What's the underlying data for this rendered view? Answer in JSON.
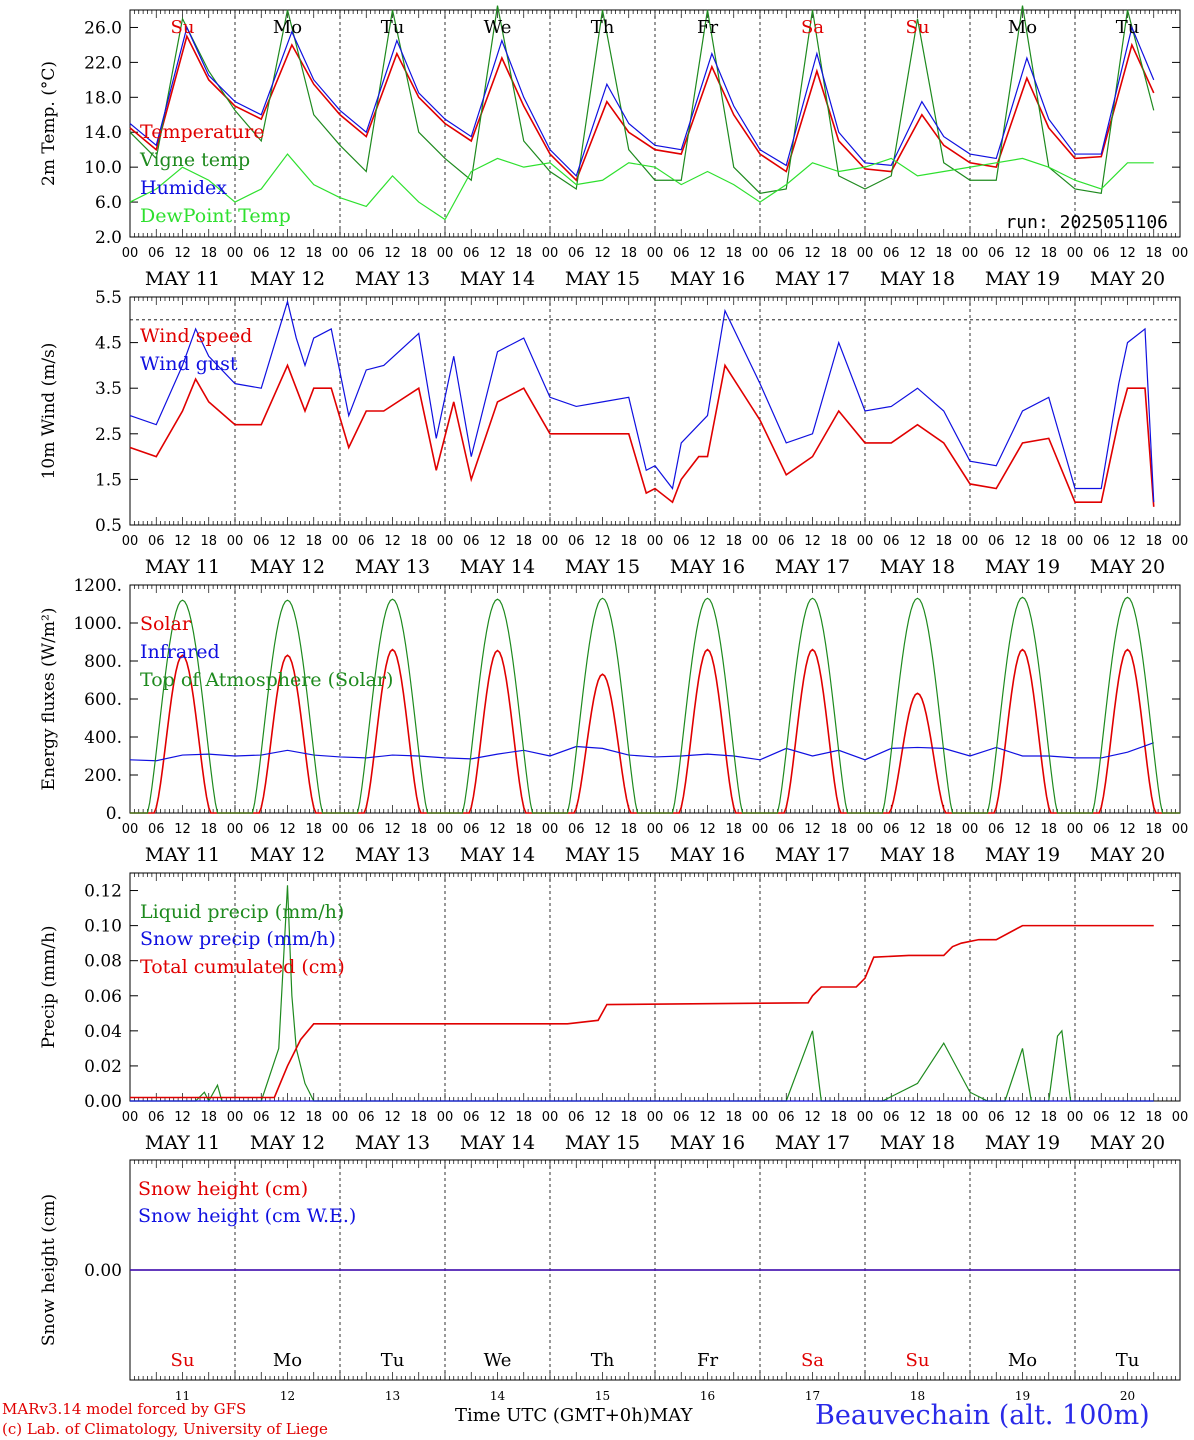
{
  "colors": {
    "red": "#e00000",
    "green": "#1e8a1e",
    "blue": "#1010e0",
    "lightgreen": "#2ee02e",
    "black": "#000000",
    "station_blue": "#2a2ae8"
  },
  "days": {
    "labels": [
      "MAY 11",
      "MAY 12",
      "MAY 13",
      "MAY 14",
      "MAY 15",
      "MAY 16",
      "MAY 17",
      "MAY 18",
      "MAY 19",
      "MAY 20"
    ],
    "weekdays": [
      "Su",
      "Mo",
      "Tu",
      "We",
      "Th",
      "Fr",
      "Sa",
      "Su",
      "Mo",
      "Tu"
    ],
    "weekday_colors": [
      "#e00000",
      "#000000",
      "#000000",
      "#000000",
      "#000000",
      "#000000",
      "#e00000",
      "#e00000",
      "#000000",
      "#000000"
    ],
    "numbers": [
      "11",
      "12",
      "13",
      "14",
      "15",
      "16",
      "17",
      "18",
      "19",
      "20"
    ],
    "hour_ticks": [
      "00",
      "06",
      "12",
      "18"
    ],
    "final_tick": "00"
  },
  "footer": {
    "model_line": "MARv3.14 model forced by GFS",
    "lab_line": "(c) Lab. of Climatology, University of Liege",
    "axis_title": "Time UTC (GMT+0h)",
    "month": "MAY",
    "station": "Beauvechain (alt. 100m)"
  },
  "chart_data": [
    {
      "type": "line",
      "ylabel": "2m Temp. (°C)",
      "ylim": [
        2.0,
        28.0
      ],
      "yticks": [
        "2.0",
        "6.0",
        "10.0",
        "14.0",
        "18.0",
        "22.0",
        "26.0"
      ],
      "ytick_values": [
        2,
        6,
        10,
        14,
        18,
        22,
        26
      ],
      "annotation": "run: 2025051106",
      "x_unit": "hours since MAY 11 00 UTC",
      "series": [
        {
          "name": "Temperature",
          "color": "#e00000",
          "x": [
            0,
            6,
            13,
            18,
            24,
            30,
            37,
            42,
            48,
            54,
            61,
            66,
            72,
            78,
            85,
            90,
            96,
            102,
            109,
            114,
            120,
            126,
            133,
            138,
            144,
            150,
            157,
            162,
            168,
            174,
            181,
            186,
            192,
            198,
            205,
            210,
            216,
            222,
            229,
            234
          ],
          "y": [
            14.5,
            12.0,
            25.0,
            20.0,
            17.0,
            15.5,
            24.0,
            19.5,
            16.0,
            13.5,
            23.0,
            18.0,
            15.0,
            13.0,
            22.5,
            17.0,
            11.5,
            8.5,
            17.5,
            14.0,
            12.0,
            11.5,
            21.5,
            16.0,
            11.5,
            9.5,
            21.0,
            13.0,
            9.8,
            9.5,
            16.0,
            12.5,
            10.5,
            10.0,
            20.2,
            14.5,
            11.0,
            11.2,
            24.0,
            18.5
          ]
        },
        {
          "name": "Vigne temp",
          "color": "#1e8a1e",
          "x": [
            0,
            6,
            12,
            18,
            24,
            30,
            36,
            42,
            48,
            54,
            60,
            66,
            72,
            78,
            84,
            90,
            96,
            102,
            108,
            114,
            120,
            126,
            132,
            138,
            144,
            150,
            156,
            162,
            168,
            174,
            180,
            186,
            192,
            198,
            204,
            210,
            216,
            222,
            228,
            234
          ],
          "y": [
            14.0,
            11.0,
            27.0,
            21.0,
            16.5,
            13.0,
            28.0,
            16.0,
            12.5,
            9.5,
            28.0,
            14.0,
            11.0,
            8.5,
            28.5,
            13.0,
            9.5,
            7.5,
            28.0,
            12.0,
            8.5,
            8.5,
            28.0,
            10.0,
            7.0,
            7.5,
            28.0,
            9.0,
            7.5,
            9.0,
            27.0,
            10.5,
            8.5,
            8.5,
            28.5,
            10.0,
            7.5,
            7.0,
            28.0,
            16.5
          ]
        },
        {
          "name": "Humidex",
          "color": "#1010e0",
          "x": [
            0,
            6,
            13,
            18,
            24,
            30,
            37,
            42,
            48,
            54,
            61,
            66,
            72,
            78,
            85,
            90,
            96,
            102,
            109,
            114,
            120,
            126,
            133,
            138,
            144,
            150,
            157,
            162,
            168,
            174,
            181,
            186,
            192,
            198,
            205,
            210,
            216,
            222,
            229,
            234
          ],
          "y": [
            15.0,
            12.5,
            26.0,
            20.5,
            17.5,
            16.0,
            25.5,
            20.0,
            16.5,
            14.0,
            24.5,
            18.5,
            15.5,
            13.5,
            24.5,
            18.0,
            12.0,
            9.0,
            19.5,
            15.0,
            12.5,
            12.0,
            23.0,
            17.0,
            12.0,
            10.2,
            23.0,
            14.0,
            10.5,
            10.2,
            17.5,
            13.5,
            11.5,
            11.0,
            22.5,
            15.5,
            11.5,
            11.5,
            26.0,
            20.0
          ]
        },
        {
          "name": "DewPoint Temp",
          "color": "#2ee02e",
          "x": [
            0,
            6,
            12,
            18,
            24,
            30,
            36,
            42,
            48,
            54,
            60,
            66,
            72,
            78,
            84,
            90,
            96,
            102,
            108,
            114,
            120,
            126,
            132,
            138,
            144,
            150,
            156,
            162,
            168,
            174,
            180,
            186,
            192,
            198,
            204,
            210,
            216,
            222,
            228,
            234
          ],
          "y": [
            6.0,
            7.5,
            10.0,
            8.5,
            6.0,
            7.5,
            11.5,
            8.0,
            6.5,
            5.5,
            9.0,
            6.0,
            4.0,
            9.5,
            11.0,
            10.0,
            10.5,
            8.0,
            8.5,
            10.5,
            10.0,
            8.0,
            9.5,
            8.0,
            6.0,
            8.0,
            10.5,
            9.5,
            10.0,
            11.0,
            9.0,
            9.5,
            10.0,
            10.5,
            11.0,
            10.0,
            8.5,
            7.5,
            10.5,
            10.5
          ]
        }
      ]
    },
    {
      "type": "line",
      "ylabel": "10m Wind (m/s)",
      "ylim": [
        0.5,
        5.5
      ],
      "yticks": [
        "0.5",
        "1.5",
        "2.5",
        "3.5",
        "4.5",
        "5.5"
      ],
      "ytick_values": [
        0.5,
        1.5,
        2.5,
        3.5,
        4.5,
        5.5
      ],
      "reference_line": 5.0,
      "x_unit": "hours since MAY 11 00 UTC",
      "series": [
        {
          "name": "Wind speed",
          "color": "#e00000",
          "x": [
            0,
            6,
            12,
            15,
            18,
            24,
            30,
            36,
            38,
            40,
            42,
            46,
            50,
            54,
            58,
            66,
            70,
            74,
            78,
            84,
            90,
            96,
            102,
            108,
            114,
            118,
            120,
            124,
            126,
            130,
            132,
            136,
            144,
            150,
            156,
            162,
            168,
            174,
            180,
            186,
            192,
            198,
            204,
            210,
            216,
            222,
            226,
            228,
            232,
            234
          ],
          "y": [
            2.2,
            2.0,
            3.0,
            3.7,
            3.2,
            2.7,
            2.7,
            4.0,
            3.5,
            3.0,
            3.5,
            3.5,
            2.2,
            3.0,
            3.0,
            3.5,
            1.7,
            3.2,
            1.5,
            3.2,
            3.5,
            2.5,
            2.5,
            2.5,
            2.5,
            1.2,
            1.3,
            1.0,
            1.5,
            2.0,
            2.0,
            4.0,
            2.8,
            1.6,
            2.0,
            3.0,
            2.3,
            2.3,
            2.7,
            2.3,
            1.4,
            1.3,
            2.3,
            2.4,
            1.0,
            1.0,
            2.8,
            3.5,
            3.5,
            0.9
          ]
        },
        {
          "name": "Wind gust",
          "color": "#1010e0",
          "x": [
            0,
            6,
            12,
            15,
            18,
            24,
            30,
            36,
            38,
            40,
            42,
            46,
            50,
            54,
            58,
            66,
            70,
            74,
            78,
            84,
            90,
            96,
            102,
            108,
            114,
            118,
            120,
            124,
            126,
            130,
            132,
            136,
            144,
            150,
            156,
            162,
            168,
            174,
            180,
            186,
            192,
            198,
            204,
            210,
            216,
            222,
            226,
            228,
            232,
            234
          ],
          "y": [
            2.9,
            2.7,
            4.0,
            4.8,
            4.2,
            3.6,
            3.5,
            5.4,
            4.6,
            4.0,
            4.6,
            4.8,
            2.9,
            3.9,
            4.0,
            4.7,
            2.4,
            4.2,
            2.0,
            4.3,
            4.6,
            3.3,
            3.1,
            3.2,
            3.3,
            1.7,
            1.8,
            1.3,
            2.3,
            2.7,
            2.9,
            5.2,
            3.6,
            2.3,
            2.5,
            4.5,
            3.0,
            3.1,
            3.5,
            3.0,
            1.9,
            1.8,
            3.0,
            3.3,
            1.3,
            1.3,
            3.6,
            4.5,
            4.8,
            1.0
          ]
        }
      ]
    },
    {
      "type": "line",
      "ylabel": "Energy fluxes (W/m²)",
      "ylim": [
        0,
        1200
      ],
      "yticks": [
        "0.",
        "200.",
        "400.",
        "600.",
        "800.",
        "1000.",
        "1200."
      ],
      "ytick_values": [
        0,
        200,
        400,
        600,
        800,
        1000,
        1200
      ],
      "x_unit": "hours since MAY 11 00 UTC",
      "daily_peaks": {
        "Solar": [
          830,
          830,
          860,
          855,
          730,
          860,
          860,
          630,
          860,
          860
        ],
        "Top of Atmosphere (Solar)": [
          1120,
          1120,
          1125,
          1125,
          1130,
          1130,
          1130,
          1130,
          1135,
          1135
        ]
      },
      "series": [
        {
          "name": "Solar",
          "color": "#e00000"
        },
        {
          "name": "Infrared",
          "color": "#1010e0",
          "x": [
            0,
            6,
            12,
            18,
            24,
            30,
            36,
            42,
            48,
            54,
            60,
            66,
            72,
            78,
            84,
            90,
            96,
            102,
            108,
            114,
            120,
            126,
            132,
            138,
            144,
            150,
            156,
            162,
            168,
            174,
            180,
            186,
            192,
            198,
            204,
            210,
            216,
            222,
            228,
            234
          ],
          "y": [
            280,
            275,
            305,
            310,
            300,
            305,
            330,
            305,
            295,
            290,
            305,
            300,
            290,
            285,
            310,
            330,
            300,
            350,
            340,
            305,
            295,
            300,
            310,
            300,
            280,
            340,
            300,
            330,
            280,
            340,
            345,
            340,
            300,
            345,
            300,
            300,
            290,
            290,
            320,
            370
          ]
        },
        {
          "name": "Top of Atmosphere (Solar)",
          "color": "#1e8a1e"
        }
      ]
    },
    {
      "type": "line",
      "ylabel": "Precip (mm/h)",
      "ylim": [
        0.0,
        0.13
      ],
      "yticks": [
        "0.00",
        "0.02",
        "0.04",
        "0.06",
        "0.08",
        "0.10",
        "0.12"
      ],
      "ytick_values": [
        0,
        0.02,
        0.04,
        0.06,
        0.08,
        0.1,
        0.12
      ],
      "x_unit": "hours since MAY 11 00 UTC",
      "series": [
        {
          "name": "Liquid precip (mm/h)",
          "color": "#1e8a1e",
          "x": [
            0,
            15,
            17,
            18,
            20,
            21,
            23,
            30,
            34,
            36,
            37,
            38,
            40,
            42,
            150,
            156,
            158,
            165,
            172,
            180,
            186,
            192,
            196,
            200,
            204,
            206,
            210,
            212,
            213,
            215,
            216,
            234
          ],
          "y": [
            0,
            0,
            0.005,
            0,
            0.009,
            0,
            0,
            0,
            0.03,
            0.123,
            0.06,
            0.03,
            0.01,
            0,
            0,
            0.04,
            0,
            0,
            0,
            0.01,
            0.033,
            0.005,
            0,
            0,
            0.03,
            0,
            0,
            0.037,
            0.04,
            0,
            0,
            0
          ]
        },
        {
          "name": "Snow precip (mm/h)",
          "color": "#1010e0",
          "x": [
            0,
            234
          ],
          "y": [
            0,
            0
          ]
        },
        {
          "name": "Total cumulated (cm)",
          "color": "#e00000",
          "x": [
            0,
            33,
            36,
            39,
            42,
            100,
            107,
            109,
            155,
            156,
            158,
            162,
            166,
            168,
            170,
            178,
            186,
            188,
            190,
            194,
            196,
            198,
            204,
            208,
            211,
            234
          ],
          "y": [
            0.002,
            0.002,
            0.02,
            0.035,
            0.044,
            0.044,
            0.046,
            0.055,
            0.056,
            0.06,
            0.065,
            0.065,
            0.065,
            0.07,
            0.082,
            0.083,
            0.083,
            0.088,
            0.09,
            0.092,
            0.092,
            0.092,
            0.1,
            0.1,
            0.1,
            0.1
          ]
        }
      ]
    },
    {
      "type": "line",
      "ylabel": "Snow height (cm)",
      "yticks": [
        "0.00"
      ],
      "ytick_values": [
        0
      ],
      "x_unit": "hours since MAY 11 00 UTC",
      "series": [
        {
          "name": "Snow height (cm)",
          "color": "#e00000",
          "x": [
            0,
            240
          ],
          "y": [
            0,
            0
          ]
        },
        {
          "name": "Snow height (cm W.E.)",
          "color": "#1010e0",
          "x": [
            0,
            240
          ],
          "y": [
            0,
            0
          ]
        }
      ]
    }
  ]
}
